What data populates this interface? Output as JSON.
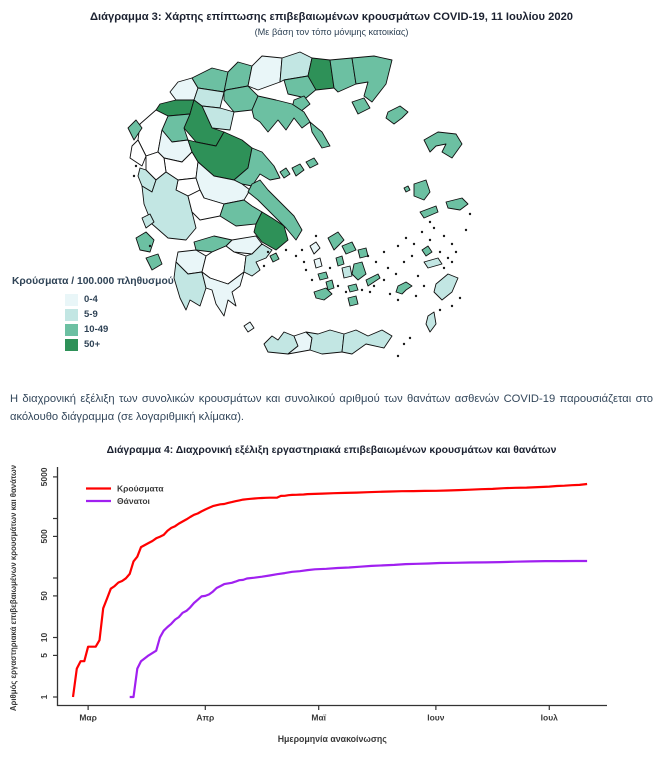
{
  "page": {
    "heading1": "Διάγραμμα 3: Χάρτης επίπτωσης επιβεβαιωμένων κρουσμάτων COVID-19, 11 Ιουλίου 2020",
    "subheading1": "(Με βάση τον τόπο μόνιμης κατοικίας)",
    "paragraph": "Η διαχρονική εξέλιξη των συνολικών κρουσμάτων και συνολικού αριθμού των θανάτων ασθενών COVID-19 παρουσιάζεται στο ακόλουθο διάγραμμα (σε λογαριθμική κλίμακα).",
    "heading2": "Διάγραμμα 4: Διαχρονική εξέλιξη εργαστηριακά επιβεβαιωμένων κρουσμάτων και θανάτων"
  },
  "map": {
    "legend_title": "Κρούσματα / 100.000 πληθυσμού",
    "categories": [
      {
        "label": "0-4",
        "color": "#e9f6f8"
      },
      {
        "label": "5-9",
        "color": "#c2e6e3"
      },
      {
        "label": "10-49",
        "color": "#6cc0a2"
      },
      {
        "label": "50+",
        "color": "#2e9158"
      }
    ],
    "zero_color": "#ffffff",
    "regions": {
      "florina": 0,
      "pella": 2,
      "kilkis": 2,
      "serres": 0,
      "drama": 1,
      "kavala": 2,
      "xanthi": 3,
      "rhodopi": 2,
      "evros": 2,
      "thasos": 2,
      "samothraki": 2,
      "limnos": 2,
      "thessaloniki": 2,
      "halkidiki": 2,
      "athos": 2,
      "imathia": 1,
      "pieria": 1,
      "kastoria": 3,
      "kozani": 3,
      "grevena": 2,
      "ioannina": -1,
      "thesprotia": -1,
      "corfu": 2,
      "trikala": 0,
      "larissa": 3,
      "magnesia": 2,
      "karditsa": -1,
      "arta": -1,
      "preveza": 1,
      "evrytania": -1,
      "fthiotida": 0,
      "aitoloakarnania": 1,
      "fokida": -1,
      "voiotia": 2,
      "attica": 3,
      "evia": 2,
      "skiathos": 2,
      "skopelos": 2,
      "alonnisos": 2,
      "korinthia": 0,
      "achaia": 2,
      "ilia": 0,
      "arkadia": -1,
      "argolida": 1,
      "messinia": 1,
      "lakonia": 0,
      "kythira": 0,
      "lefkada": 1,
      "kefalonia": 2,
      "zakynthos": 2,
      "aegina": 2,
      "chania": 1,
      "rethymno": 0,
      "heraklion": 1,
      "lasithi": 1,
      "kea": 0,
      "andros": 2,
      "tinos": 2,
      "mykonos": 2,
      "syros": 2,
      "kythnos": 0,
      "serifos": 2,
      "sifnos": 2,
      "milos": 2,
      "paros": 1,
      "naxos": 2,
      "ios": 2,
      "santorini": 2,
      "amorgos": 2,
      "astypalea": 2,
      "kos": 1,
      "kalymnos": 2,
      "rhodes": 1,
      "karpathos": 1,
      "lesbos": 2,
      "chios": 2,
      "psara": 2,
      "samos": 2,
      "ikaria": 2
    }
  },
  "chart_data": {
    "type": "line",
    "log_y": true,
    "title": "Διάγραμμα 4: Διαχρονική εξέλιξη εργαστηριακά επιβεβαιωμένων κρουσμάτων και θανάτων",
    "xlabel": "Ημερομηνία ανακοίνωσης",
    "ylabel": "Αριθμός εργαστηριακά επιβεβαιωμένων κρουσμάτων και θανάτων",
    "ylim": [
      1,
      5000
    ],
    "y_ticks": [
      {
        "value": 1,
        "label": "1"
      },
      {
        "value": 5,
        "label": "5"
      },
      {
        "value": 10,
        "label": "10"
      },
      {
        "value": 50,
        "label": "50"
      },
      {
        "value": 100,
        "label": ""
      },
      {
        "value": 500,
        "label": "500"
      },
      {
        "value": 1000,
        "label": ""
      },
      {
        "value": 5000,
        "label": "5000"
      }
    ],
    "x_ticks": [
      {
        "day": 4,
        "label": "Μαρ"
      },
      {
        "day": 35,
        "label": "Απρ"
      },
      {
        "day": 65,
        "label": "Μαϊ"
      },
      {
        "day": 96,
        "label": "Ιουν"
      },
      {
        "day": 126,
        "label": "Ιουλ"
      }
    ],
    "series": [
      {
        "name": "Κρούσματα",
        "color": "#ff0000",
        "points": [
          [
            0,
            1
          ],
          [
            1,
            3
          ],
          [
            2,
            4
          ],
          [
            3,
            4
          ],
          [
            4,
            7
          ],
          [
            6,
            7
          ],
          [
            7,
            9
          ],
          [
            8,
            31
          ],
          [
            9,
            45
          ],
          [
            10,
            66
          ],
          [
            11,
            73
          ],
          [
            12,
            84
          ],
          [
            13,
            89
          ],
          [
            14,
            99
          ],
          [
            15,
            117
          ],
          [
            16,
            190
          ],
          [
            17,
            228
          ],
          [
            18,
            331
          ],
          [
            20,
            387
          ],
          [
            21,
            418
          ],
          [
            22,
            464
          ],
          [
            23,
            495
          ],
          [
            24,
            530
          ],
          [
            25,
            624
          ],
          [
            26,
            695
          ],
          [
            27,
            743
          ],
          [
            28,
            821
          ],
          [
            29,
            892
          ],
          [
            30,
            966
          ],
          [
            31,
            1061
          ],
          [
            32,
            1156
          ],
          [
            33,
            1212
          ],
          [
            34,
            1314
          ],
          [
            35,
            1415
          ],
          [
            36,
            1514
          ],
          [
            37,
            1613
          ],
          [
            38,
            1673
          ],
          [
            39,
            1735
          ],
          [
            40,
            1755
          ],
          [
            41,
            1832
          ],
          [
            42,
            1884
          ],
          [
            43,
            1955
          ],
          [
            44,
            2011
          ],
          [
            45,
            2081
          ],
          [
            46,
            2114
          ],
          [
            47,
            2145
          ],
          [
            48,
            2170
          ],
          [
            49,
            2192
          ],
          [
            50,
            2207
          ],
          [
            51,
            2224
          ],
          [
            52,
            2235
          ],
          [
            54,
            2245
          ],
          [
            55,
            2401
          ],
          [
            56,
            2408
          ],
          [
            57,
            2463
          ],
          [
            58,
            2490
          ],
          [
            59,
            2506
          ],
          [
            60,
            2517
          ],
          [
            61,
            2534
          ],
          [
            62,
            2566
          ],
          [
            63,
            2576
          ],
          [
            64,
            2591
          ],
          [
            66,
            2620
          ],
          [
            69,
            2663
          ],
          [
            72,
            2691
          ],
          [
            75,
            2726
          ],
          [
            78,
            2770
          ],
          [
            81,
            2810
          ],
          [
            84,
            2840
          ],
          [
            87,
            2873
          ],
          [
            90,
            2892
          ],
          [
            93,
            2906
          ],
          [
            96,
            2917
          ],
          [
            99,
            2952
          ],
          [
            102,
            2997
          ],
          [
            105,
            3049
          ],
          [
            108,
            3112
          ],
          [
            111,
            3148
          ],
          [
            114,
            3227
          ],
          [
            117,
            3287
          ],
          [
            120,
            3310
          ],
          [
            123,
            3366
          ],
          [
            126,
            3432
          ],
          [
            128,
            3511
          ],
          [
            130,
            3562
          ],
          [
            132,
            3622
          ],
          [
            134,
            3672
          ],
          [
            136,
            3803
          ]
        ]
      },
      {
        "name": "Θάνατοι",
        "color": "#a020f0",
        "points": [
          [
            15,
            1
          ],
          [
            16,
            1
          ],
          [
            17,
            3
          ],
          [
            18,
            4
          ],
          [
            20,
            5
          ],
          [
            22,
            6
          ],
          [
            23,
            10
          ],
          [
            24,
            13
          ],
          [
            25,
            15
          ],
          [
            26,
            17
          ],
          [
            27,
            20
          ],
          [
            28,
            22
          ],
          [
            29,
            26
          ],
          [
            30,
            28
          ],
          [
            31,
            32
          ],
          [
            32,
            38
          ],
          [
            33,
            43
          ],
          [
            34,
            49
          ],
          [
            35,
            50
          ],
          [
            36,
            53
          ],
          [
            37,
            59
          ],
          [
            38,
            68
          ],
          [
            39,
            73
          ],
          [
            40,
            79
          ],
          [
            41,
            81
          ],
          [
            42,
            83
          ],
          [
            43,
            87
          ],
          [
            44,
            92
          ],
          [
            45,
            93
          ],
          [
            46,
            98
          ],
          [
            48,
            101
          ],
          [
            50,
            105
          ],
          [
            52,
            110
          ],
          [
            54,
            116
          ],
          [
            56,
            121
          ],
          [
            58,
            127
          ],
          [
            60,
            130
          ],
          [
            62,
            136
          ],
          [
            64,
            140
          ],
          [
            67,
            143
          ],
          [
            70,
            147
          ],
          [
            73,
            150
          ],
          [
            76,
            155
          ],
          [
            79,
            160
          ],
          [
            82,
            163
          ],
          [
            85,
            166
          ],
          [
            88,
            171
          ],
          [
            91,
            173
          ],
          [
            94,
            175
          ],
          [
            97,
            179
          ],
          [
            101,
            180
          ],
          [
            105,
            182
          ],
          [
            109,
            183
          ],
          [
            113,
            185
          ],
          [
            117,
            188
          ],
          [
            121,
            190
          ],
          [
            125,
            192
          ],
          [
            129,
            192
          ],
          [
            133,
            193
          ],
          [
            136,
            193
          ]
        ]
      }
    ]
  }
}
